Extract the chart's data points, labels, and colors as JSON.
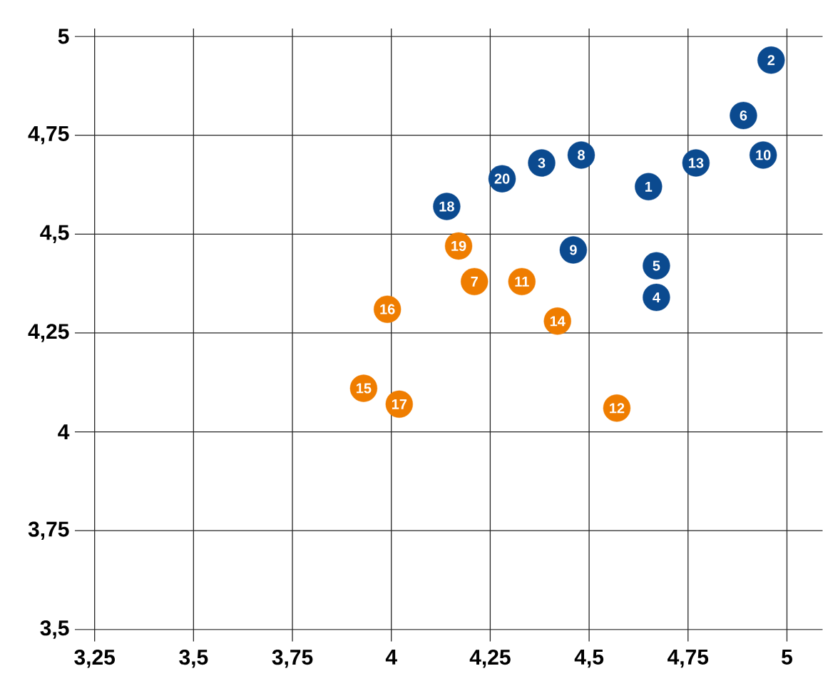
{
  "chart_data": {
    "type": "scatter",
    "marker": "circle",
    "grid": true,
    "xlim": [
      3.2,
      5.09
    ],
    "ylim": [
      3.47,
      5.02
    ],
    "xticks": [
      {
        "value": 3.25,
        "label": "3,25"
      },
      {
        "value": 3.5,
        "label": "3,5"
      },
      {
        "value": 3.75,
        "label": "3,75"
      },
      4,
      {
        "value": 4.25,
        "label": "4,25"
      },
      {
        "value": 4.5,
        "label": "4,5"
      },
      {
        "value": 4.75,
        "label": "4,75"
      },
      5
    ],
    "yticks": [
      {
        "value": 3.5,
        "label": "3,5"
      },
      {
        "value": 3.75,
        "label": "3,75"
      },
      4,
      {
        "value": 4.25,
        "label": "4,25"
      },
      {
        "value": 4.5,
        "label": "4,5"
      },
      {
        "value": 4.75,
        "label": "4,75"
      },
      5
    ],
    "series": [
      {
        "color": "#0b4a8f",
        "x": [
          4.65,
          4.96,
          4.38,
          4.67,
          4.67,
          4.89,
          4.48,
          4.46,
          4.94,
          4.77,
          4.14,
          4.28
        ],
        "values": [
          4.62,
          4.94,
          4.68,
          4.34,
          4.42,
          4.8,
          4.7,
          4.46,
          4.7,
          4.68,
          4.57,
          4.64
        ]
      },
      {
        "color": "#ef7d00",
        "x": [
          4.21,
          4.33,
          4.57,
          4.42,
          3.93,
          3.99,
          4.02,
          4.17
        ],
        "values": [
          4.38,
          4.38,
          4.06,
          4.28,
          4.11,
          4.31,
          4.07,
          4.47
        ]
      }
    ],
    "annotations": [
      {
        "text": "1",
        "x": 4.65,
        "y": 4.62
      },
      {
        "text": "2",
        "x": 4.96,
        "y": 4.94
      },
      {
        "text": "3",
        "x": 4.38,
        "y": 4.68
      },
      {
        "text": "4",
        "x": 4.67,
        "y": 4.34
      },
      {
        "text": "5",
        "x": 4.67,
        "y": 4.42
      },
      {
        "text": "6",
        "x": 4.89,
        "y": 4.8
      },
      {
        "text": "7",
        "x": 4.21,
        "y": 4.38
      },
      {
        "text": "8",
        "x": 4.48,
        "y": 4.7
      },
      {
        "text": "9",
        "x": 4.46,
        "y": 4.46
      },
      {
        "text": "10",
        "x": 4.94,
        "y": 4.7
      },
      {
        "text": "11",
        "x": 4.33,
        "y": 4.38
      },
      {
        "text": "12",
        "x": 4.57,
        "y": 4.06
      },
      {
        "text": "13",
        "x": 4.77,
        "y": 4.68
      },
      {
        "text": "14",
        "x": 4.42,
        "y": 4.28
      },
      {
        "text": "15",
        "x": 3.93,
        "y": 4.11
      },
      {
        "text": "16",
        "x": 3.99,
        "y": 4.31
      },
      {
        "text": "17",
        "x": 4.02,
        "y": 4.07
      },
      {
        "text": "18",
        "x": 4.14,
        "y": 4.57
      },
      {
        "text": "19",
        "x": 4.17,
        "y": 4.47
      },
      {
        "text": "20",
        "x": 4.28,
        "y": 4.64
      }
    ]
  }
}
